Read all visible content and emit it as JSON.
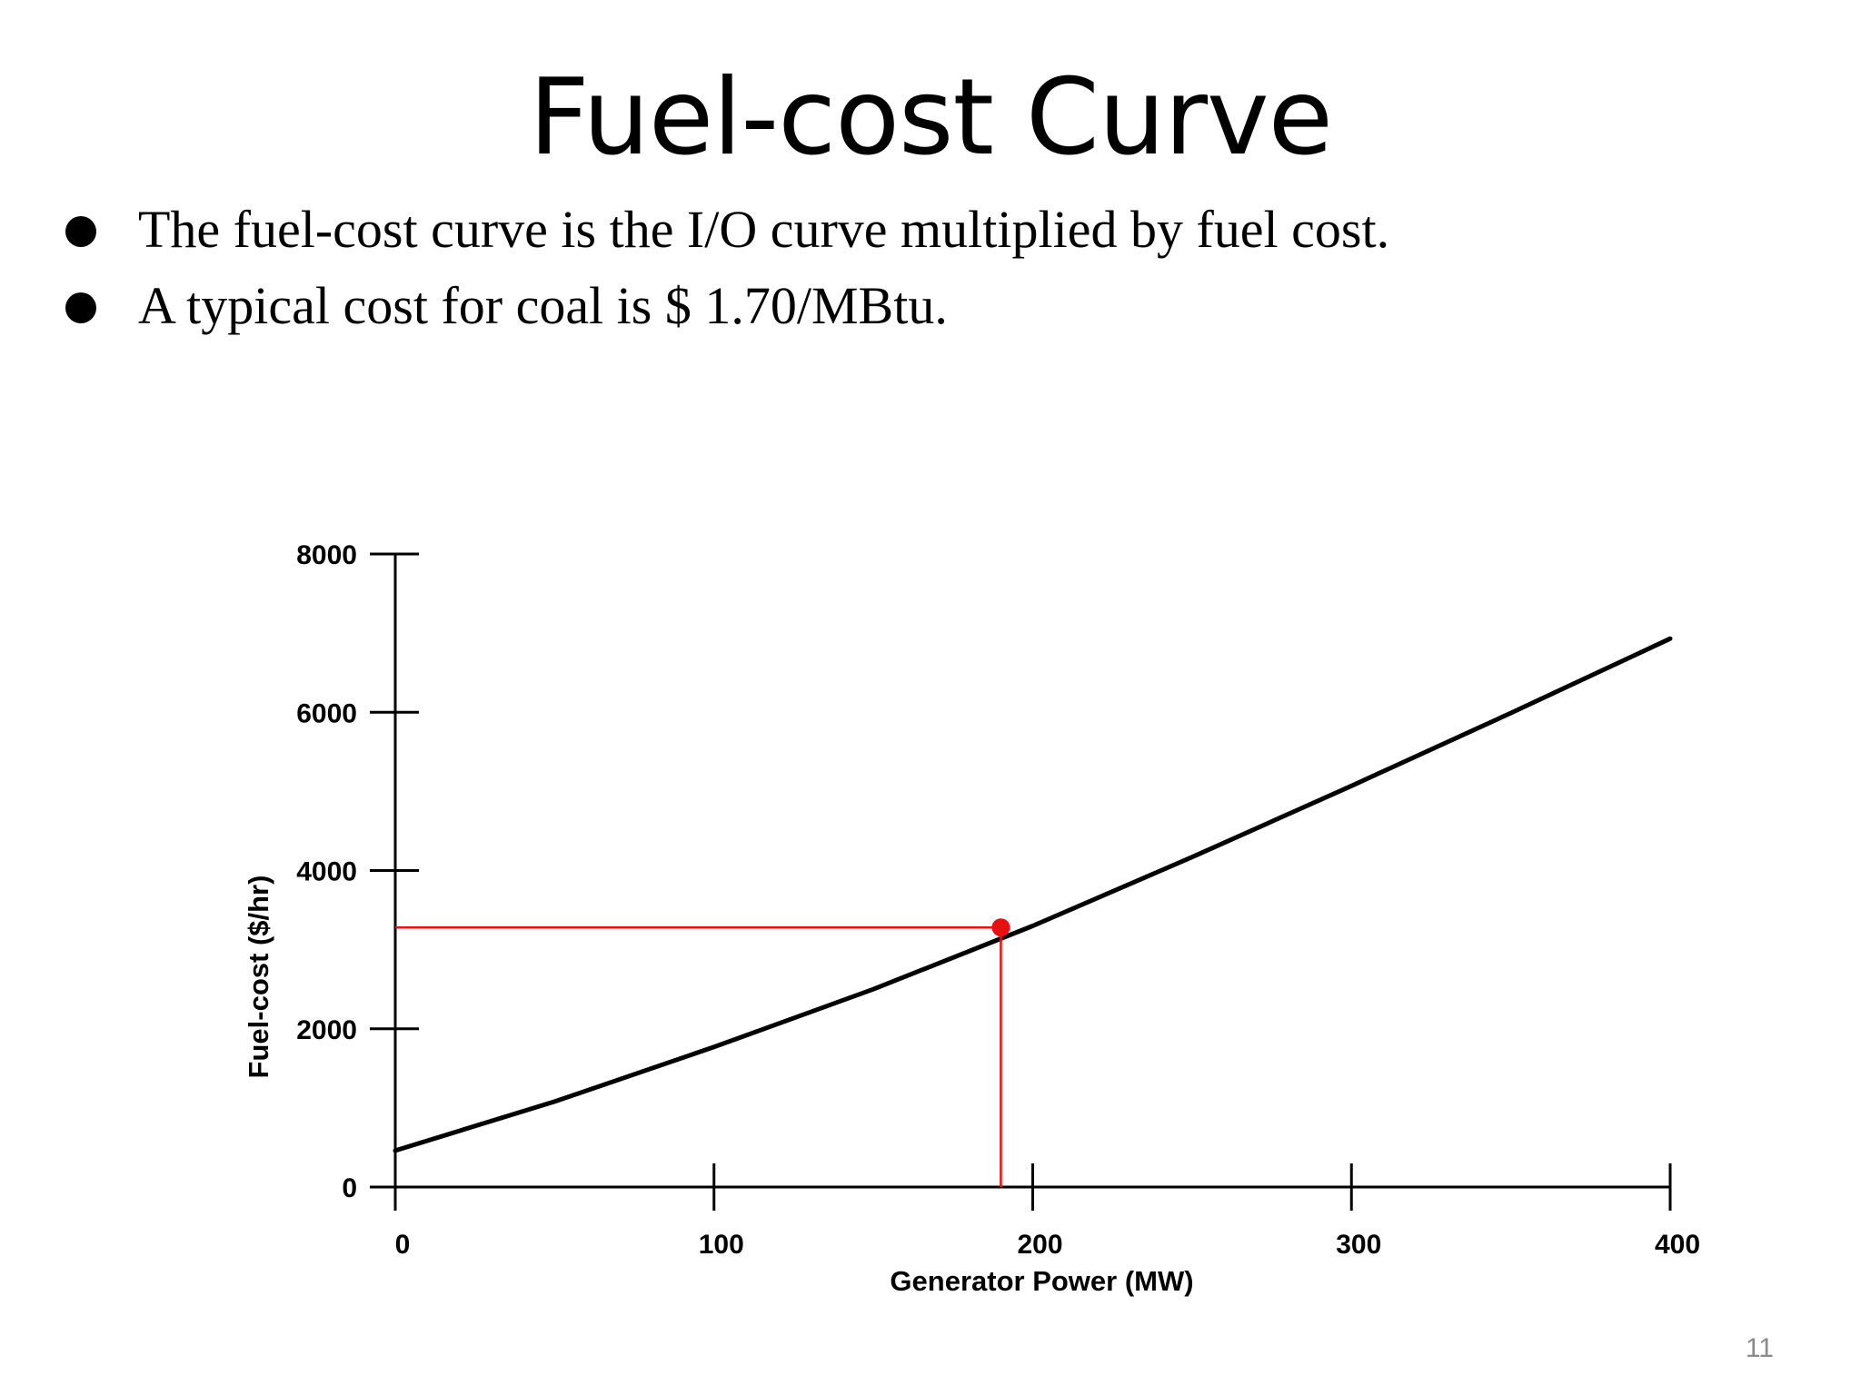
{
  "slide": {
    "title": "Fuel-cost Curve",
    "bullets": [
      "The fuel-cost curve is the I/O curve multiplied by fuel cost.",
      "A typical cost for coal is $ 1.70/MBtu."
    ],
    "page_number": "11"
  },
  "chart_data": {
    "type": "line",
    "xlabel": "Generator Power (MW)",
    "ylabel": "Fuel-cost ($/hr)",
    "xlim": [
      0,
      400
    ],
    "ylim": [
      0,
      8000
    ],
    "x_ticks": [
      0,
      100,
      200,
      300,
      400
    ],
    "y_ticks": [
      0,
      2000,
      4000,
      6000,
      8000
    ],
    "grid": false,
    "series": [
      {
        "color": "#000000",
        "x": [
          0,
          50,
          100,
          150,
          200,
          250,
          300,
          350,
          400
        ],
        "y": [
          460,
          1080,
          1770,
          2500,
          3300,
          4170,
          5070,
          5990,
          6930
        ]
      }
    ],
    "marker": {
      "x": 190,
      "y": 3280,
      "color": "#e81010",
      "guide_lines": true
    }
  }
}
